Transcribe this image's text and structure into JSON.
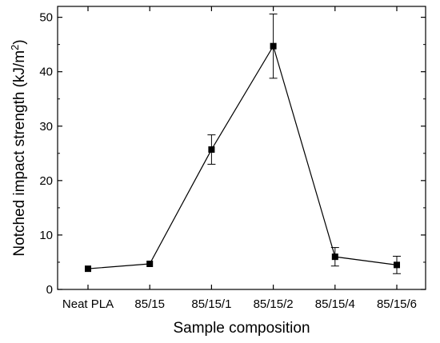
{
  "chart_data": {
    "type": "line",
    "xlabel": "Sample composition",
    "ylabel": "Notched impact strength (kJ/m",
    "ylabel_superscript": "2",
    "ylabel_close": ")",
    "categories": [
      "Neat PLA",
      "85/15",
      "85/15/1",
      "85/15/2",
      "85/15/4",
      "85/15/6"
    ],
    "series": [
      {
        "values": [
          3.8,
          4.7,
          25.7,
          44.7,
          6.0,
          4.5
        ],
        "error": [
          0,
          0,
          2.7,
          5.9,
          1.7,
          1.6
        ],
        "marker": "square",
        "color": "#000000"
      }
    ],
    "ylim": [
      0,
      52
    ],
    "yticks": [
      0,
      10,
      20,
      30,
      40,
      50
    ],
    "grid": false,
    "legend": "none"
  }
}
